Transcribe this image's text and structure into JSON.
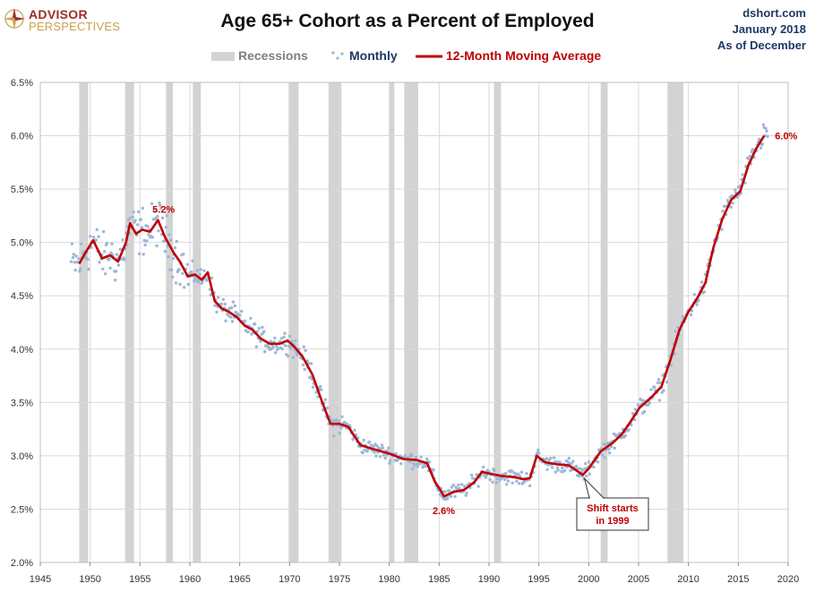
{
  "header": {
    "logo_line1": "ADVISOR",
    "logo_line2": "PERSPECTIVES",
    "title": "Age 65+ Cohort as a Percent of Employed",
    "source_site": "dshort.com",
    "source_date": "January 2018",
    "source_asof": "As of December"
  },
  "colors": {
    "recession": "#d3d3d3",
    "monthly": "#9db7d6",
    "moving_average": "#c00000",
    "annotation": "#c00000",
    "logo_red": "#9b2d2a",
    "logo_gold": "#c9a24a",
    "source_text": "#1f3864"
  },
  "chart_data": {
    "type": "line",
    "title": "Age 65+ Cohort as a Percent of Employed",
    "xlim": [
      1945,
      2020
    ],
    "ylim": [
      2.0,
      6.5
    ],
    "x_ticks": [
      1945,
      1950,
      1955,
      1960,
      1965,
      1970,
      1975,
      1980,
      1985,
      1990,
      1995,
      2000,
      2005,
      2010,
      2015,
      2020
    ],
    "y_ticks": [
      2.0,
      2.5,
      3.0,
      3.5,
      4.0,
      4.5,
      5.0,
      5.5,
      6.0,
      6.5
    ],
    "y_tick_labels": [
      "2.0%",
      "2.5%",
      "3.0%",
      "3.5%",
      "4.0%",
      "4.5%",
      "5.0%",
      "5.5%",
      "6.0%",
      "6.5%"
    ],
    "grid": true,
    "legend": {
      "placement": "top-center",
      "items": [
        "Recessions",
        "Monthly",
        "12-Month Moving Average"
      ]
    },
    "recessions": [
      [
        1948.9,
        1949.8
      ],
      [
        1953.5,
        1954.4
      ],
      [
        1957.6,
        1958.3
      ],
      [
        1960.3,
        1961.1
      ],
      [
        1969.9,
        1970.9
      ],
      [
        1973.9,
        1975.2
      ],
      [
        1980.0,
        1980.5
      ],
      [
        1981.5,
        1982.9
      ],
      [
        1990.5,
        1991.2
      ],
      [
        2001.2,
        2001.9
      ],
      [
        2007.9,
        2009.5
      ]
    ],
    "series": [
      {
        "name": "12-Month Moving Average",
        "x": [
          1948.9,
          1949.5,
          1950.3,
          1951.2,
          1952.0,
          1952.8,
          1953.6,
          1954.0,
          1954.6,
          1955.2,
          1956.0,
          1956.8,
          1957.5,
          1958.4,
          1959.0,
          1959.8,
          1960.5,
          1961.2,
          1961.8,
          1962.5,
          1963.2,
          1963.9,
          1964.7,
          1965.5,
          1966.3,
          1967.1,
          1968.0,
          1969.0,
          1969.8,
          1970.5,
          1971.3,
          1972.3,
          1973.2,
          1974.1,
          1975.0,
          1975.9,
          1977.1,
          1978.5,
          1980.0,
          1981.4,
          1982.8,
          1983.8,
          1984.5,
          1985.5,
          1986.4,
          1987.5,
          1988.5,
          1989.3,
          1990.2,
          1991.3,
          1992.5,
          1993.5,
          1994.1,
          1994.8,
          1995.6,
          1996.8,
          1998.0,
          1998.8,
          1999.4,
          2000.0,
          2000.6,
          2001.2,
          2002.4,
          2003.3,
          2004.2,
          2005.1,
          2006.3,
          2007.3,
          2008.2,
          2009.1,
          2010.0,
          2010.9,
          2011.7,
          2012.5,
          2013.4,
          2014.3,
          2015.2,
          2016.0,
          2016.8,
          2017.6
        ],
        "y": [
          4.8,
          4.9,
          5.02,
          4.85,
          4.88,
          4.82,
          5.0,
          5.18,
          5.08,
          5.12,
          5.1,
          5.21,
          5.05,
          4.9,
          4.82,
          4.68,
          4.7,
          4.65,
          4.72,
          4.45,
          4.38,
          4.35,
          4.3,
          4.22,
          4.18,
          4.1,
          4.05,
          4.05,
          4.08,
          4.02,
          3.93,
          3.76,
          3.52,
          3.3,
          3.3,
          3.27,
          3.1,
          3.06,
          3.02,
          2.97,
          2.96,
          2.93,
          2.77,
          2.62,
          2.66,
          2.68,
          2.75,
          2.85,
          2.83,
          2.81,
          2.8,
          2.78,
          2.79,
          3.0,
          2.94,
          2.92,
          2.91,
          2.86,
          2.82,
          2.88,
          2.96,
          3.04,
          3.12,
          3.2,
          3.32,
          3.45,
          3.55,
          3.65,
          3.9,
          4.18,
          4.35,
          4.48,
          4.62,
          4.95,
          5.22,
          5.4,
          5.48,
          5.72,
          5.88,
          6.0
        ]
      },
      {
        "name": "Monthly",
        "note": "scatter of monthly values around the moving average"
      }
    ],
    "annotations": [
      {
        "text": "5.2%",
        "x": 1956.6,
        "y": 5.21
      },
      {
        "text": "2.6%",
        "x": 1985.6,
        "y": 2.62
      },
      {
        "text": "6.0%",
        "x": 2017.6,
        "y": 6.0
      },
      {
        "text": "Shift starts",
        "text2": "in 1999",
        "x": 1999.4,
        "y": 2.82
      }
    ]
  }
}
